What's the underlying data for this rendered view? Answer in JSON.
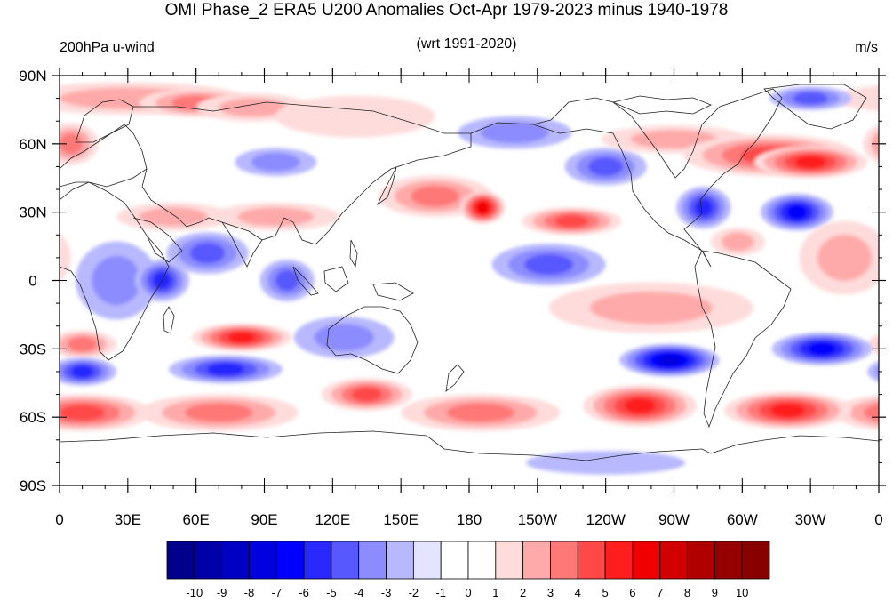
{
  "title": "OMI Phase_2 ERA5 U200 Anomalies Oct-Apr 1979-2023 minus 1940-1978",
  "left_label": "200hPa u-wind",
  "center_label": "(wrt 1991-2020)",
  "right_label": "m/s",
  "map": {
    "projection": "cylindrical-equidistant",
    "lon_range": [
      0,
      360
    ],
    "lat_range": [
      -90,
      90
    ],
    "lat_ticks": [
      {
        "value": 90,
        "label": "90N"
      },
      {
        "value": 60,
        "label": "60N"
      },
      {
        "value": 30,
        "label": "30N"
      },
      {
        "value": 0,
        "label": "0"
      },
      {
        "value": -30,
        "label": "30S"
      },
      {
        "value": -60,
        "label": "60S"
      },
      {
        "value": -90,
        "label": "90S"
      }
    ],
    "lon_ticks": [
      {
        "value": 0,
        "label": "0"
      },
      {
        "value": 30,
        "label": "30E"
      },
      {
        "value": 60,
        "label": "60E"
      },
      {
        "value": 90,
        "label": "90E"
      },
      {
        "value": 120,
        "label": "120E"
      },
      {
        "value": 150,
        "label": "150E"
      },
      {
        "value": 180,
        "label": "180"
      },
      {
        "value": 210,
        "label": "150W"
      },
      {
        "value": 240,
        "label": "120W"
      },
      {
        "value": 270,
        "label": "90W"
      },
      {
        "value": 300,
        "label": "60W"
      },
      {
        "value": 330,
        "label": "30W"
      },
      {
        "value": 360,
        "label": "0"
      }
    ],
    "anomaly_centers": [
      {
        "lon": 5,
        "lat": 60,
        "value": 3,
        "rx": 12,
        "ry": 8
      },
      {
        "lon": 30,
        "lat": 80,
        "value": 2,
        "rx": 50,
        "ry": 6
      },
      {
        "lon": 60,
        "lat": 78,
        "value": 3,
        "rx": 25,
        "ry": 5
      },
      {
        "lon": 85,
        "lat": 76,
        "value": 2,
        "rx": 25,
        "ry": 5
      },
      {
        "lon": 95,
        "lat": 52,
        "value": -2,
        "rx": 18,
        "ry": 5
      },
      {
        "lon": 130,
        "lat": 72,
        "value": 1,
        "rx": 35,
        "ry": 8
      },
      {
        "lon": 50,
        "lat": 28,
        "value": 2,
        "rx": 25,
        "ry": 5
      },
      {
        "lon": 95,
        "lat": 28,
        "value": 2,
        "rx": 28,
        "ry": 5
      },
      {
        "lon": 165,
        "lat": 37,
        "value": 3,
        "rx": 25,
        "ry": 8
      },
      {
        "lon": 186,
        "lat": 32,
        "value": 6,
        "rx": 10,
        "ry": 6
      },
      {
        "lon": 225,
        "lat": 26,
        "value": 4,
        "rx": 22,
        "ry": 5
      },
      {
        "lon": 200,
        "lat": 65,
        "value": -2,
        "rx": 25,
        "ry": 6
      },
      {
        "lon": 240,
        "lat": 50,
        "value": -3,
        "rx": 18,
        "ry": 7
      },
      {
        "lon": 270,
        "lat": 62,
        "value": 2,
        "rx": 32,
        "ry": 5
      },
      {
        "lon": 312,
        "lat": 55,
        "value": 4,
        "rx": 38,
        "ry": 8
      },
      {
        "lon": 330,
        "lat": 52,
        "value": 5,
        "rx": 25,
        "ry": 6
      },
      {
        "lon": 330,
        "lat": 80,
        "value": -3,
        "rx": 18,
        "ry": 4
      },
      {
        "lon": 283,
        "lat": 32,
        "value": -4,
        "rx": 12,
        "ry": 8
      },
      {
        "lon": 324,
        "lat": 30,
        "value": -5,
        "rx": 16,
        "ry": 7
      },
      {
        "lon": 345,
        "lat": 10,
        "value": 2,
        "rx": 20,
        "ry": 15
      },
      {
        "lon": 298,
        "lat": 17,
        "value": 2,
        "rx": 12,
        "ry": 5
      },
      {
        "lon": 25,
        "lat": 0,
        "value": -2,
        "rx": 18,
        "ry": 16
      },
      {
        "lon": 45,
        "lat": 0,
        "value": -4,
        "rx": 12,
        "ry": 8
      },
      {
        "lon": 65,
        "lat": 12,
        "value": -3,
        "rx": 18,
        "ry": 8
      },
      {
        "lon": 100,
        "lat": 0,
        "value": -3,
        "rx": 12,
        "ry": 8
      },
      {
        "lon": 215,
        "lat": 7,
        "value": -3,
        "rx": 25,
        "ry": 8
      },
      {
        "lon": 260,
        "lat": -12,
        "value": 2,
        "rx": 45,
        "ry": 10
      },
      {
        "lon": 10,
        "lat": -28,
        "value": 3,
        "rx": 15,
        "ry": 5
      },
      {
        "lon": 80,
        "lat": -25,
        "value": 5,
        "rx": 22,
        "ry": 5
      },
      {
        "lon": 125,
        "lat": -25,
        "value": -2,
        "rx": 22,
        "ry": 8
      },
      {
        "lon": 10,
        "lat": -40,
        "value": -4,
        "rx": 15,
        "ry": 5
      },
      {
        "lon": 73,
        "lat": -39,
        "value": -4,
        "rx": 25,
        "ry": 5
      },
      {
        "lon": 268,
        "lat": -35,
        "value": -6,
        "rx": 22,
        "ry": 6
      },
      {
        "lon": 335,
        "lat": -30,
        "value": -5,
        "rx": 22,
        "ry": 6
      },
      {
        "lon": 10,
        "lat": -58,
        "value": 4,
        "rx": 30,
        "ry": 7
      },
      {
        "lon": 70,
        "lat": -58,
        "value": 3,
        "rx": 35,
        "ry": 7
      },
      {
        "lon": 135,
        "lat": -50,
        "value": 4,
        "rx": 20,
        "ry": 6
      },
      {
        "lon": 185,
        "lat": -58,
        "value": 3,
        "rx": 35,
        "ry": 7
      },
      {
        "lon": 255,
        "lat": -55,
        "value": 5,
        "rx": 25,
        "ry": 8
      },
      {
        "lon": 320,
        "lat": -57,
        "value": 5,
        "rx": 28,
        "ry": 7
      },
      {
        "lon": 240,
        "lat": -80,
        "value": -1,
        "rx": 35,
        "ry": 4
      }
    ]
  },
  "colorbar": {
    "levels": [
      "-10",
      "-9",
      "-8",
      "-7",
      "-6",
      "-5",
      "-4",
      "-3",
      "-2",
      "-1",
      "0",
      "1",
      "2",
      "3",
      "4",
      "5",
      "6",
      "7",
      "8",
      "9",
      "10"
    ],
    "colors": [
      "#00008c",
      "#0000a8",
      "#0000c4",
      "#0000e0",
      "#0000ff",
      "#2828ff",
      "#5858ff",
      "#8c8cff",
      "#b8b8ff",
      "#e4e4ff",
      "#ffffff",
      "#ffffff",
      "#ffdcdc",
      "#ffaaaa",
      "#ff7878",
      "#ff4848",
      "#ff1e1e",
      "#f00000",
      "#d20000",
      "#b00000",
      "#960000",
      "#880000"
    ]
  }
}
